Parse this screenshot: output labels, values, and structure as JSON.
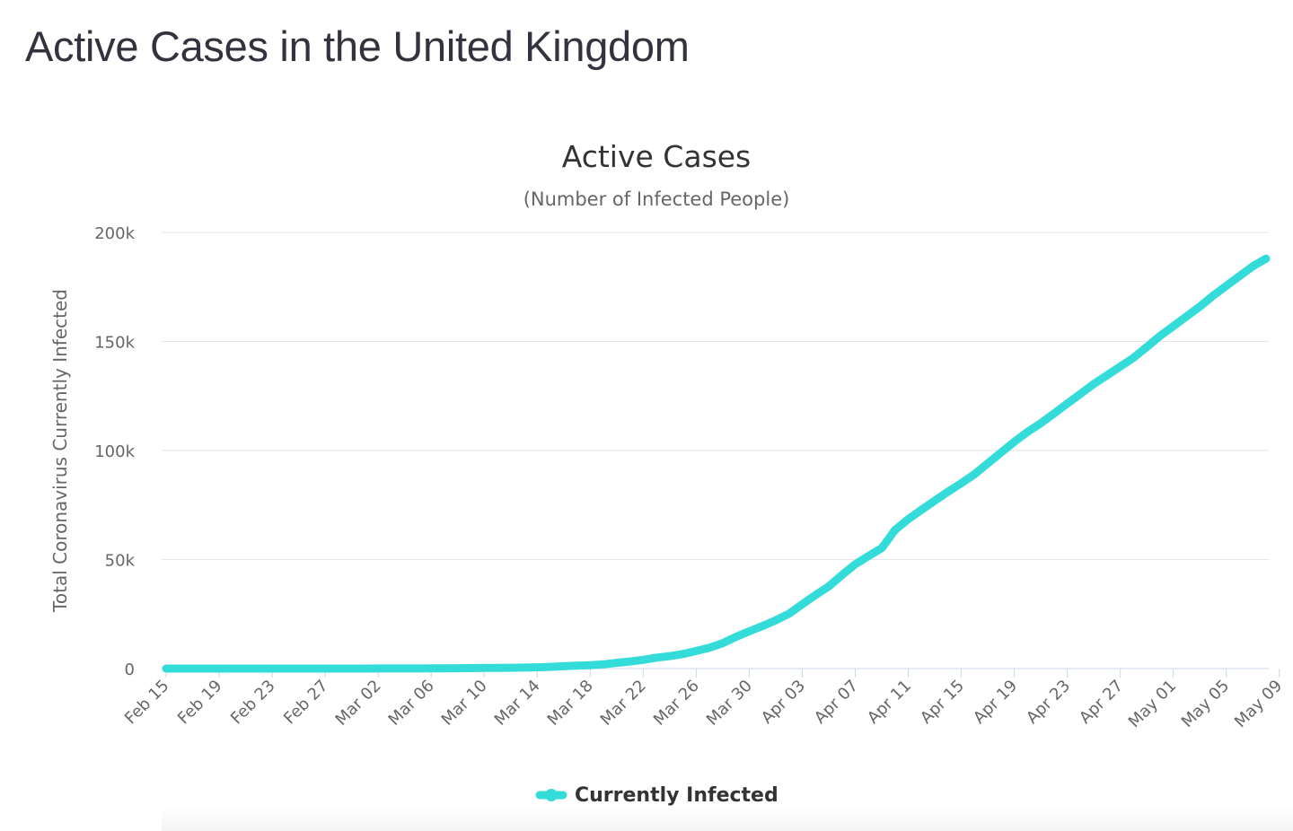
{
  "page": {
    "heading": "Active Cases in the United Kingdom"
  },
  "chart_data": {
    "type": "line",
    "title": "Active Cases",
    "subtitle": "(Number of Infected People)",
    "xlabel": "",
    "ylabel": "Total Coronavirus Currently Infected",
    "ylim": [
      0,
      200000
    ],
    "yticks": [
      0,
      50000,
      100000,
      150000,
      200000
    ],
    "ytick_labels": [
      "0",
      "50k",
      "100k",
      "150k",
      "200k"
    ],
    "x_tick_labels": [
      "Feb 15",
      "Feb 19",
      "Feb 23",
      "Feb 27",
      "Mar 02",
      "Mar 06",
      "Mar 10",
      "Mar 14",
      "Mar 18",
      "Mar 22",
      "Mar 26",
      "Mar 30",
      "Apr 03",
      "Apr 07",
      "Apr 11",
      "Apr 15",
      "Apr 19",
      "Apr 23",
      "Apr 27",
      "May 01",
      "May 05",
      "May 09"
    ],
    "grid": true,
    "legend_position": "bottom-center",
    "series": [
      {
        "name": "Currently Infected",
        "color": "#33dcd8",
        "x_start": "Feb 15",
        "x_step_days": 1,
        "values": [
          9,
          9,
          9,
          9,
          9,
          9,
          9,
          9,
          9,
          9,
          9,
          9,
          9,
          9,
          9,
          9,
          23,
          36,
          40,
          51,
          85,
          114,
          160,
          206,
          271,
          321,
          373,
          456,
          590,
          797,
          1061,
          1372,
          1543,
          1950,
          2626,
          3269,
          3983,
          5018,
          5683,
          6650,
          8077,
          9529,
          11658,
          14543,
          17089,
          19522,
          22141,
          25150,
          29474,
          33718,
          37697,
          42882,
          47806,
          51608,
          55242,
          63550,
          68500,
          72800,
          77000,
          81100,
          85000,
          89100,
          94100,
          99000,
          104000,
          108500,
          112500,
          117000,
          121500,
          126000,
          130500,
          134500,
          138500,
          142500,
          147500,
          152500,
          157000,
          161500,
          166000,
          171000,
          175500,
          180000,
          184500,
          188000
        ]
      }
    ]
  }
}
